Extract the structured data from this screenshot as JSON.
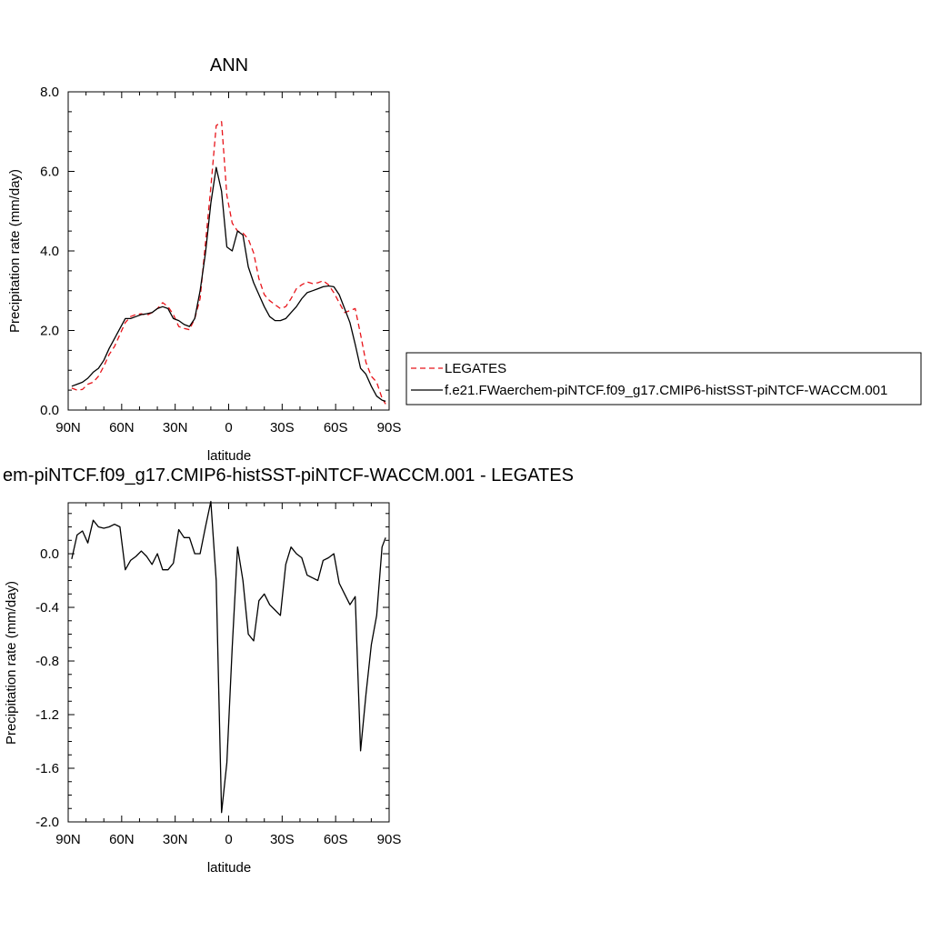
{
  "chart_data": [
    {
      "type": "line",
      "title": "ANN",
      "xlabel": "latitude",
      "ylabel": "Precipitation rate (mm/day)",
      "xlim": [
        90,
        -90
      ],
      "ylim": [
        0,
        8
      ],
      "xtick_values": [
        90,
        60,
        30,
        0,
        -30,
        -60,
        -90
      ],
      "xtick_labels": [
        "90N",
        "60N",
        "30N",
        "0",
        "30S",
        "60S",
        "90S"
      ],
      "ytick_values": [
        0,
        2,
        4,
        6,
        8
      ],
      "ytick_labels": [
        "0.0",
        "2.0",
        "4.0",
        "6.0",
        "8.0"
      ],
      "legend_position": "right",
      "series": [
        {
          "name": "LEGATES",
          "color": "#e8141a",
          "dash": "dashed",
          "x": [
            88,
            85,
            82,
            79,
            76,
            73,
            70,
            67,
            64,
            61,
            58,
            55,
            52,
            49,
            46,
            43,
            40,
            37,
            34,
            31,
            28,
            25,
            22,
            19,
            16,
            13,
            10,
            7,
            4,
            1,
            -2,
            -5,
            -8,
            -11,
            -14,
            -17,
            -20,
            -23,
            -26,
            -29,
            -32,
            -35,
            -38,
            -41,
            -44,
            -47,
            -50,
            -53,
            -56,
            -59,
            -62,
            -65,
            -68,
            -71,
            -74,
            -77,
            -80,
            -83,
            -86,
            -88
          ],
          "y": [
            0.55,
            0.5,
            0.52,
            0.65,
            0.7,
            0.85,
            1.1,
            1.4,
            1.6,
            1.9,
            2.2,
            2.35,
            2.4,
            2.42,
            2.38,
            2.45,
            2.55,
            2.7,
            2.6,
            2.4,
            2.1,
            2.05,
            2.02,
            2.3,
            2.8,
            4.2,
            5.6,
            7.15,
            7.25,
            5.4,
            4.7,
            4.5,
            4.45,
            4.3,
            3.95,
            3.3,
            2.9,
            2.75,
            2.65,
            2.55,
            2.6,
            2.8,
            3.05,
            3.15,
            3.22,
            3.18,
            3.2,
            3.25,
            3.15,
            2.95,
            2.7,
            2.45,
            2.5,
            2.55,
            1.9,
            1.2,
            0.85,
            0.7,
            0.3,
            0.15
          ]
        },
        {
          "name": "f.e21.FWaerchem-piNTCF.f09_g17.CMIP6-histSST-piNTCF-WACCM.001",
          "color": "#000000",
          "dash": "solid",
          "x": [
            88,
            85,
            82,
            79,
            76,
            73,
            70,
            67,
            64,
            61,
            58,
            55,
            52,
            49,
            46,
            43,
            40,
            37,
            34,
            31,
            28,
            25,
            22,
            19,
            16,
            13,
            10,
            7,
            4,
            1,
            -2,
            -5,
            -8,
            -11,
            -14,
            -17,
            -20,
            -23,
            -26,
            -29,
            -32,
            -35,
            -38,
            -41,
            -44,
            -47,
            -50,
            -53,
            -56,
            -59,
            -62,
            -65,
            -68,
            -71,
            -74,
            -77,
            -80,
            -83,
            -86,
            -88
          ],
          "y": [
            0.6,
            0.65,
            0.7,
            0.8,
            0.95,
            1.05,
            1.25,
            1.55,
            1.8,
            2.05,
            2.3,
            2.3,
            2.35,
            2.4,
            2.42,
            2.45,
            2.55,
            2.6,
            2.55,
            2.3,
            2.25,
            2.15,
            2.1,
            2.3,
            3.0,
            3.95,
            5.2,
            6.1,
            5.5,
            4.1,
            4.0,
            4.5,
            4.4,
            3.6,
            3.2,
            2.9,
            2.6,
            2.35,
            2.25,
            2.25,
            2.3,
            2.45,
            2.6,
            2.8,
            2.95,
            3.0,
            3.05,
            3.1,
            3.12,
            3.1,
            2.9,
            2.55,
            2.2,
            1.65,
            1.05,
            0.9,
            0.6,
            0.35,
            0.25,
            0.22
          ]
        }
      ]
    },
    {
      "type": "line",
      "title": "em-piNTCF.f09_g17.CMIP6-histSST-piNTCF-WACCM.001 - LEGATES",
      "xlabel": "latitude",
      "ylabel": "Precipitation rate (mm/day)",
      "xlim": [
        90,
        -90
      ],
      "ylim": [
        -2.0,
        0.38
      ],
      "xtick_values": [
        90,
        60,
        30,
        0,
        -30,
        -60,
        -90
      ],
      "xtick_labels": [
        "90N",
        "60N",
        "30N",
        "0",
        "30S",
        "60S",
        "90S"
      ],
      "ytick_values": [
        0.0,
        -0.4,
        -0.8,
        -1.2,
        -1.6,
        -2.0
      ],
      "ytick_labels": [
        "0.0",
        "-0.4",
        "-0.8",
        "-1.2",
        "-1.6",
        "-2.0"
      ],
      "series": [
        {
          "name": "",
          "color": "#000000",
          "dash": "solid",
          "x": [
            88,
            85,
            82,
            79,
            76,
            73,
            70,
            67,
            64,
            61,
            58,
            55,
            52,
            49,
            46,
            43,
            40,
            37,
            34,
            31,
            28,
            25,
            22,
            19,
            16,
            13,
            10,
            7,
            4,
            1,
            -2,
            -5,
            -8,
            -11,
            -14,
            -17,
            -20,
            -23,
            -26,
            -29,
            -32,
            -35,
            -38,
            -41,
            -44,
            -47,
            -50,
            -53,
            -56,
            -59,
            -62,
            -65,
            -68,
            -71,
            -74,
            -77,
            -80,
            -83,
            -86,
            -88
          ],
          "y": [
            -0.04,
            0.14,
            0.17,
            0.08,
            0.25,
            0.2,
            0.19,
            0.2,
            0.22,
            0.2,
            -0.12,
            -0.05,
            -0.02,
            0.02,
            -0.02,
            -0.08,
            0.0,
            -0.12,
            -0.12,
            -0.07,
            0.18,
            0.12,
            0.12,
            0.0,
            0.0,
            0.2,
            0.39,
            -0.2,
            -1.93,
            -1.56,
            -0.7,
            0.05,
            -0.2,
            -0.6,
            -0.65,
            -0.35,
            -0.3,
            -0.38,
            -0.42,
            -0.46,
            -0.08,
            0.05,
            0.0,
            -0.03,
            -0.16,
            -0.18,
            -0.2,
            -0.05,
            -0.03,
            0.0,
            -0.22,
            -0.3,
            -0.38,
            -0.32,
            -1.47,
            -1.05,
            -0.68,
            -0.46,
            0.05,
            0.12
          ]
        }
      ]
    }
  ]
}
